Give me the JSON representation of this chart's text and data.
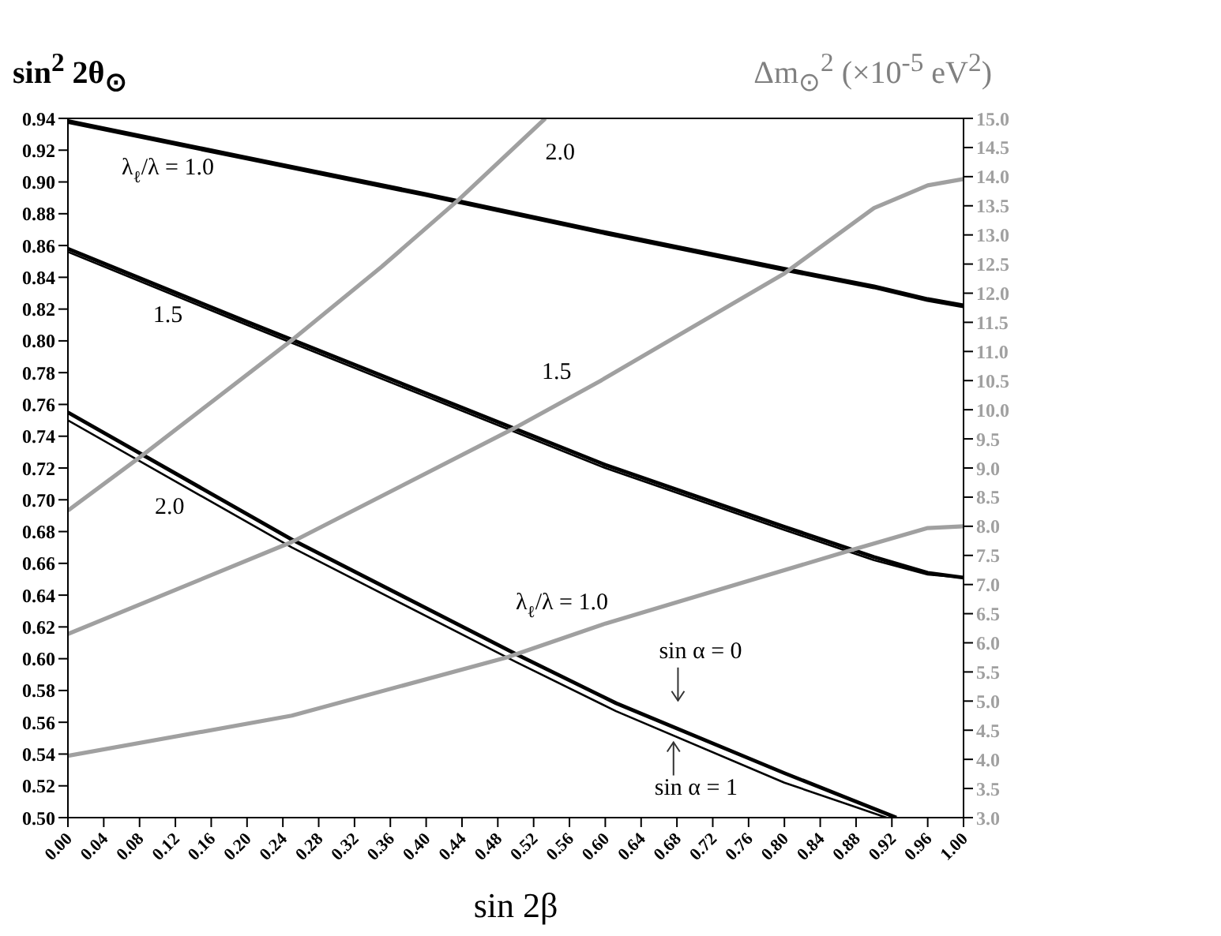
{
  "chart_data": {
    "type": "line",
    "xlabel": "sin 2β",
    "ylabel": "sin$^{2}$ 2θ$_{⊙}$",
    "y2label": "Δm$_{⊙}$$^{2}$ (×10$^{-5}$ eV$^{2}$)",
    "xlim": [
      0,
      1
    ],
    "xticks": [
      {
        "value": 0,
        "label": "0.00"
      },
      {
        "value": 0.04,
        "label": "0.04"
      },
      {
        "value": 0.08,
        "label": "0.08"
      },
      {
        "value": 0.12,
        "label": "0.12"
      },
      {
        "value": 0.16,
        "label": "0.16"
      },
      {
        "value": 0.2,
        "label": "0.20"
      },
      {
        "value": 0.24,
        "label": "0.24"
      },
      {
        "value": 0.28,
        "label": "0.28"
      },
      {
        "value": 0.32,
        "label": "0.32"
      },
      {
        "value": 0.36,
        "label": "0.36"
      },
      {
        "value": 0.4,
        "label": "0.40"
      },
      {
        "value": 0.44,
        "label": "0.44"
      },
      {
        "value": 0.48,
        "label": "0.48"
      },
      {
        "value": 0.52,
        "label": "0.52"
      },
      {
        "value": 0.56,
        "label": "0.56"
      },
      {
        "value": 0.6,
        "label": "0.60"
      },
      {
        "value": 0.64,
        "label": "0.64"
      },
      {
        "value": 0.68,
        "label": "0.68"
      },
      {
        "value": 0.72,
        "label": "0.72"
      },
      {
        "value": 0.76,
        "label": "0.76"
      },
      {
        "value": 0.8,
        "label": "0.80"
      },
      {
        "value": 0.84,
        "label": "0.84"
      },
      {
        "value": 0.88,
        "label": "0.88"
      },
      {
        "value": 0.92,
        "label": "0.92"
      },
      {
        "value": 0.96,
        "label": "0.96"
      },
      {
        "value": 1,
        "label": "1.00"
      }
    ],
    "ylim": [
      0.5,
      0.94
    ],
    "yticks": [
      {
        "value": 0.5,
        "label": "0.50"
      },
      0.52,
      0.54,
      0.56,
      0.58,
      {
        "value": 0.6,
        "label": "0.60"
      },
      0.62,
      0.64,
      0.66,
      0.68,
      {
        "value": 0.7,
        "label": "0.70"
      },
      0.72,
      0.74,
      0.76,
      0.78,
      {
        "value": 0.8,
        "label": "0.80"
      },
      0.82,
      0.84,
      0.86,
      0.88,
      {
        "value": 0.9,
        "label": "0.90"
      },
      0.92,
      0.94
    ],
    "y2lim": [
      3,
      15
    ],
    "y2ticks": [
      {
        "value": 3,
        "label": "3.0"
      },
      3.5,
      {
        "value": 4,
        "label": "4.0"
      },
      4.5,
      {
        "value": 5,
        "label": "5.0"
      },
      5.5,
      {
        "value": 6,
        "label": "6.0"
      },
      6.5,
      {
        "value": 7,
        "label": "7.0"
      },
      7.5,
      {
        "value": 8,
        "label": "8.0"
      },
      8.5,
      {
        "value": 9,
        "label": "9.0"
      },
      9.5,
      {
        "value": 10,
        "label": "10.0"
      },
      10.5,
      {
        "value": 11,
        "label": "11.0"
      },
      11.5,
      {
        "value": 12,
        "label": "12.0"
      },
      12.5,
      {
        "value": 13,
        "label": "13.0"
      },
      13.5,
      {
        "value": 14,
        "label": "14.0"
      },
      14.5,
      {
        "value": 15,
        "label": "15.0"
      }
    ],
    "marker": "none",
    "line_style": "solid",
    "series": [
      {
        "color": "#000000",
        "x": [
          0,
          0.2,
          0.4,
          0.6,
          0.8,
          0.9,
          0.96,
          1
        ],
        "values": [
          0.938,
          0.915,
          0.892,
          0.868,
          0.845,
          0.834,
          0.826,
          0.822
        ]
      },
      {
        "color": "#000000",
        "x": [
          0,
          0.2,
          0.4,
          0.6,
          0.8,
          0.9,
          0.96,
          1
        ],
        "values": [
          0.858,
          0.812,
          0.767,
          0.722,
          0.683,
          0.664,
          0.654,
          0.651
        ]
      },
      {
        "color": "#000000",
        "x": [
          0,
          0.2,
          0.4,
          0.6,
          0.8,
          0.9,
          0.96,
          1
        ],
        "values": [
          0.856,
          0.81,
          0.765,
          0.72,
          0.681,
          0.662,
          0.653,
          0.651
        ]
      },
      {
        "color": "#000000",
        "x": [
          0,
          0.25,
          0.5,
          0.612,
          0.8,
          0.925
        ],
        "values": [
          0.755,
          0.675,
          0.603,
          0.572,
          0.528,
          0.5
        ]
      },
      {
        "color": "#000000",
        "x": [
          0,
          0.25,
          0.5,
          0.612,
          0.8,
          0.914
        ],
        "values": [
          0.75,
          0.67,
          0.598,
          0.567,
          0.522,
          0.5
        ]
      },
      {
        "color": "#a0a0a0",
        "axis": "y2",
        "x": [
          0,
          0.08,
          0.253,
          0.35,
          0.436,
          0.533
        ],
        "values": [
          8.27,
          9.18,
          11.23,
          12.45,
          13.6,
          15.0
        ]
      },
      {
        "color": "#a0a0a0",
        "axis": "y2",
        "x": [
          0,
          0.25,
          0.503,
          0.594,
          0.8,
          0.9,
          0.96,
          1
        ],
        "values": [
          6.15,
          7.73,
          9.72,
          10.49,
          12.34,
          13.46,
          13.85,
          13.96
        ]
      },
      {
        "color": "#a0a0a0",
        "axis": "y2",
        "x": [
          0,
          0.25,
          0.49,
          0.6,
          0.877,
          0.96,
          1
        ],
        "values": [
          4.06,
          4.75,
          5.75,
          6.33,
          7.6,
          7.97,
          8.0
        ]
      }
    ],
    "annotations": [
      "λ$_{ℓ}$/λ = 1.0",
      "2.0",
      "1.5",
      "1.5",
      "2.0",
      "λ$_{ℓ}$/λ = 1.0",
      "sin α = 0",
      "sin α = 1"
    ]
  }
}
